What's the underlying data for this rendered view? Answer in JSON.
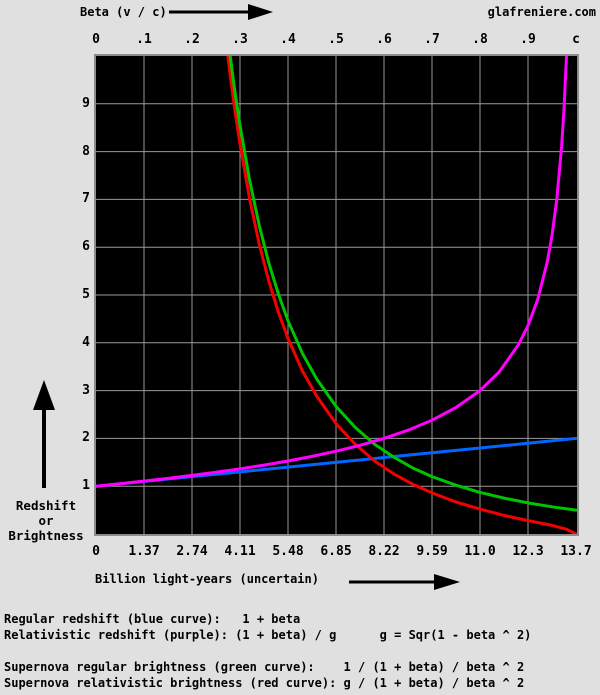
{
  "header": {
    "site": "glafreniere.com"
  },
  "y_axis_label": {
    "lines": [
      "Redshift",
      "or",
      "Brightness"
    ]
  },
  "legend": {
    "line1": "Regular redshift (blue curve):   1 + beta",
    "line2": "Relativistic redshift (purple): (1 + beta) / g      g = Sqr(1 - beta ^ 2)",
    "line3": "Supernova regular brightness (green curve):    1 / (1 + beta) / beta ^ 2",
    "line4": "Supernova relativistic brightness (red curve): g / (1 + beta) / beta ^ 2"
  },
  "chart_data": {
    "type": "line",
    "title": "",
    "plot_bg": "#000000",
    "grid": true,
    "grid_color": "#9A9A9A",
    "border_color": "#8C8C8C",
    "top_axis": {
      "label": "Beta (v / c)",
      "tick_positions": [
        0,
        0.1,
        0.2,
        0.3,
        0.4,
        0.5,
        0.6,
        0.7,
        0.8,
        0.9,
        1
      ],
      "tick_labels": [
        "0",
        ".1",
        ".2",
        ".3",
        ".4",
        ".5",
        ".6",
        ".7",
        ".8",
        ".9",
        "c"
      ],
      "range": [
        0,
        1
      ]
    },
    "bottom_axis": {
      "label": "Billion light-years (uncertain)",
      "tick_labels": [
        "0",
        "1.37",
        "2.74",
        "4.11",
        "5.48",
        "6.85",
        "8.22",
        "9.59",
        "11.0",
        "12.3",
        "13.7"
      ],
      "range_billion_light_years": [
        0,
        13.7
      ]
    },
    "y_axis": {
      "label": "Redshift or Brightness",
      "tick_values": [
        1,
        2,
        3,
        4,
        5,
        6,
        7,
        8,
        9
      ],
      "tick_labels": [
        "1",
        "2",
        "3",
        "4",
        "5",
        "6",
        "7",
        "8",
        "9"
      ],
      "range": [
        0,
        10
      ]
    },
    "series": [
      {
        "name": "Regular redshift",
        "curve": "blue",
        "color": "#0066FF",
        "formula": "1 + beta",
        "points_beta_value": [
          [
            0,
            1
          ],
          [
            0.2,
            1.2
          ],
          [
            0.4,
            1.4
          ],
          [
            0.6,
            1.6
          ],
          [
            0.8,
            1.8
          ],
          [
            1,
            2
          ]
        ]
      },
      {
        "name": "Relativistic redshift",
        "curve": "purple",
        "color": "#FF00FF",
        "formula": "(1 + beta) / g",
        "points_beta_value": [
          [
            0,
            1
          ],
          [
            0.05,
            1.052
          ],
          [
            0.1,
            1.106
          ],
          [
            0.15,
            1.163
          ],
          [
            0.2,
            1.225
          ],
          [
            0.25,
            1.291
          ],
          [
            0.3,
            1.363
          ],
          [
            0.35,
            1.441
          ],
          [
            0.4,
            1.528
          ],
          [
            0.45,
            1.624
          ],
          [
            0.5,
            1.732
          ],
          [
            0.55,
            1.856
          ],
          [
            0.6,
            2.0
          ],
          [
            0.65,
            2.171
          ],
          [
            0.7,
            2.38
          ],
          [
            0.75,
            2.646
          ],
          [
            0.8,
            3.0
          ],
          [
            0.84,
            3.391
          ],
          [
            0.88,
            3.958
          ],
          [
            0.9,
            4.359
          ],
          [
            0.92,
            4.899
          ],
          [
            0.94,
            5.686
          ],
          [
            0.95,
            6.245
          ],
          [
            0.96,
            7.0
          ],
          [
            0.97,
            8.103
          ],
          [
            0.975,
            8.888
          ],
          [
            0.98,
            9.95
          ],
          [
            0.983,
            10.8
          ]
        ]
      },
      {
        "name": "Supernova regular brightness",
        "curve": "green",
        "color": "#00C400",
        "formula": "1 / (1 + beta) / beta ^ 2",
        "points_beta_value": [
          [
            0.252,
            12.0
          ],
          [
            0.26,
            11.74
          ],
          [
            0.27,
            10.8
          ],
          [
            0.28,
            9.96
          ],
          [
            0.29,
            9.21
          ],
          [
            0.3,
            8.55
          ],
          [
            0.32,
            7.4
          ],
          [
            0.34,
            6.46
          ],
          [
            0.36,
            5.67
          ],
          [
            0.38,
            5.02
          ],
          [
            0.4,
            4.46
          ],
          [
            0.43,
            3.78
          ],
          [
            0.46,
            3.24
          ],
          [
            0.5,
            2.67
          ],
          [
            0.54,
            2.23
          ],
          [
            0.58,
            1.88
          ],
          [
            0.62,
            1.61
          ],
          [
            0.66,
            1.38
          ],
          [
            0.7,
            1.2
          ],
          [
            0.75,
            1.02
          ],
          [
            0.8,
            0.87
          ],
          [
            0.85,
            0.75
          ],
          [
            0.9,
            0.65
          ],
          [
            0.95,
            0.57
          ],
          [
            1,
            0.5
          ]
        ]
      },
      {
        "name": "Supernova relativistic brightness",
        "curve": "red",
        "color": "#F50000",
        "formula": "g / (1 + beta) / beta ^ 2",
        "points_beta_value": [
          [
            0.25,
            12.39
          ],
          [
            0.26,
            11.34
          ],
          [
            0.27,
            10.4
          ],
          [
            0.28,
            9.56
          ],
          [
            0.29,
            8.81
          ],
          [
            0.3,
            8.16
          ],
          [
            0.32,
            7.01
          ],
          [
            0.34,
            6.07
          ],
          [
            0.36,
            5.29
          ],
          [
            0.38,
            4.64
          ],
          [
            0.4,
            4.09
          ],
          [
            0.43,
            3.41
          ],
          [
            0.46,
            2.88
          ],
          [
            0.5,
            2.31
          ],
          [
            0.54,
            1.88
          ],
          [
            0.58,
            1.53
          ],
          [
            0.62,
            1.26
          ],
          [
            0.66,
            1.04
          ],
          [
            0.7,
            0.86
          ],
          [
            0.75,
            0.67
          ],
          [
            0.8,
            0.52
          ],
          [
            0.85,
            0.39
          ],
          [
            0.9,
            0.28
          ],
          [
            0.95,
            0.18
          ],
          [
            0.98,
            0.1
          ],
          [
            1,
            0
          ]
        ]
      }
    ]
  }
}
